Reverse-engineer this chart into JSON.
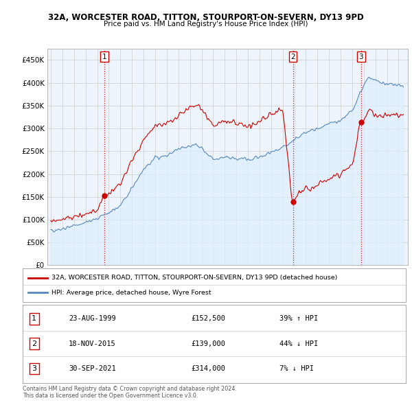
{
  "title": "32A, WORCESTER ROAD, TITTON, STOURPORT-ON-SEVERN, DY13 9PD",
  "subtitle": "Price paid vs. HM Land Registry's House Price Index (HPI)",
  "ylim": [
    0,
    475000
  ],
  "yticks": [
    0,
    50000,
    100000,
    150000,
    200000,
    250000,
    300000,
    350000,
    400000,
    450000
  ],
  "ytick_labels": [
    "£0",
    "£50K",
    "£100K",
    "£150K",
    "£200K",
    "£250K",
    "£300K",
    "£350K",
    "£400K",
    "£450K"
  ],
  "house_color": "#cc0000",
  "hpi_color": "#5588bb",
  "sale1_date_num": 1999.64,
  "sale1_price": 152500,
  "sale2_date_num": 2015.88,
  "sale2_price": 139000,
  "sale3_date_num": 2021.75,
  "sale3_price": 314000,
  "legend_house_label": "32A, WORCESTER ROAD, TITTON, STOURPORT-ON-SEVERN, DY13 9PD (detached house)",
  "legend_hpi_label": "HPI: Average price, detached house, Wyre Forest",
  "table_entries": [
    {
      "num": "1",
      "date": "23-AUG-1999",
      "price": "£152,500",
      "hpi": "39% ↑ HPI"
    },
    {
      "num": "2",
      "date": "18-NOV-2015",
      "price": "£139,000",
      "hpi": "44% ↓ HPI"
    },
    {
      "num": "3",
      "date": "30-SEP-2021",
      "price": "£314,000",
      "hpi": "7% ↓ HPI"
    }
  ],
  "footer": "Contains HM Land Registry data © Crown copyright and database right 2024.\nThis data is licensed under the Open Government Licence v3.0.",
  "vline_color": "#cc0000",
  "grid_color": "#cccccc",
  "num_box_color": "#cc0000",
  "hpi_fill_color": "#ddeeff"
}
